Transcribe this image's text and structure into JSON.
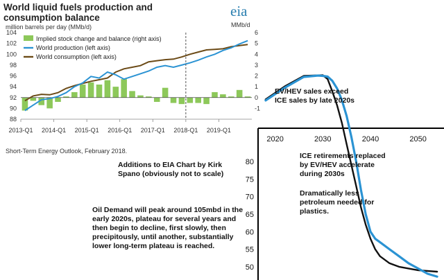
{
  "chart_data": [
    {
      "type": "bar+line",
      "title": "World liquid fuels production and consumption balance",
      "subtitle": "million barrels per day (MMb/d)",
      "right_unit": "MMb/d",
      "brand": "eia",
      "source": "Short-Term Energy Outlook, February 2018.",
      "forecast_start": "2018-Q1",
      "x_tick_labels": [
        "2013-Q1",
        "2014-Q1",
        "2015-Q1",
        "2016-Q1",
        "2017-Q1",
        "2018-Q1",
        "2019-Q1"
      ],
      "y_left": {
        "range": [
          88,
          104
        ],
        "ticks": [
          88,
          90,
          92,
          94,
          96,
          98,
          100,
          102,
          104
        ]
      },
      "y_right": {
        "range": [
          -2,
          6
        ],
        "ticks": [
          -1,
          0,
          1,
          2,
          3,
          4,
          5,
          6
        ]
      },
      "legend": [
        {
          "label": "Implied stock change and balance (right axis)",
          "color": "#8dc85a"
        },
        {
          "label": "World production (left axis)",
          "color": "#2b93d3"
        },
        {
          "label": "World consumption (left axis)",
          "color": "#6b4a16"
        }
      ],
      "quarters": [
        "2013-Q1",
        "2013-Q2",
        "2013-Q3",
        "2013-Q4",
        "2014-Q1",
        "2014-Q2",
        "2014-Q3",
        "2014-Q4",
        "2015-Q1",
        "2015-Q2",
        "2015-Q3",
        "2015-Q4",
        "2016-Q1",
        "2016-Q2",
        "2016-Q3",
        "2016-Q4",
        "2017-Q1",
        "2017-Q2",
        "2017-Q3",
        "2017-Q4",
        "2018-Q1",
        "2018-Q2",
        "2018-Q3",
        "2018-Q4",
        "2019-Q1",
        "2019-Q2",
        "2019-Q3",
        "2019-Q4"
      ],
      "stock_change": [
        -1.2,
        -0.3,
        -0.7,
        -1.0,
        -0.4,
        0.1,
        0.5,
        1.2,
        1.4,
        1.2,
        1.6,
        1.0,
        1.7,
        0.6,
        0.2,
        0.1,
        -0.4,
        0.9,
        -0.5,
        -0.6,
        -0.5,
        -0.5,
        -0.6,
        0.5,
        0.3,
        0.1,
        0.7,
        0.1
      ],
      "world_production": [
        89.6,
        90.6,
        91.6,
        91.8,
        92.2,
        92.9,
        94.0,
        94.7,
        95.9,
        95.6,
        96.7,
        96.2,
        95.4,
        95.9,
        96.4,
        96.9,
        97.6,
        97.9,
        97.6,
        98.0,
        98.4,
        98.9,
        99.5,
        100.0,
        100.7,
        101.2,
        101.9,
        102.5
      ],
      "world_consumption": [
        91.4,
        92.3,
        92.6,
        92.5,
        92.9,
        93.7,
        94.2,
        94.6,
        95.0,
        95.3,
        95.6,
        96.7,
        97.3,
        97.6,
        97.9,
        98.6,
        98.8,
        99.0,
        99.1,
        99.5,
        100.0,
        100.4,
        100.8,
        100.9,
        101.0,
        101.4,
        101.6,
        101.8
      ]
    },
    {
      "type": "line",
      "title": "",
      "x_ticks": [
        2020,
        2030,
        2040,
        2050
      ],
      "x_range": [
        2017,
        2055
      ],
      "y_ticks": [
        50,
        55,
        60,
        65,
        70,
        75,
        80
      ],
      "series": [
        {
          "color": "#111111",
          "points": [
            [
              2018,
              97.7
            ],
            [
              2022,
              101.4
            ],
            [
              2026,
              104.4
            ],
            [
              2030,
              104.6
            ],
            [
              2031,
              103.5
            ],
            [
              2032,
              100
            ],
            [
              2033,
              96
            ],
            [
              2034,
              91
            ],
            [
              2035,
              85
            ],
            [
              2036,
              79
            ],
            [
              2037,
              73
            ],
            [
              2038,
              67
            ],
            [
              2039,
              62
            ],
            [
              2040,
              58
            ],
            [
              2041,
              55
            ],
            [
              2042,
              53
            ],
            [
              2044,
              51
            ],
            [
              2046,
              50
            ],
            [
              2050,
              49
            ],
            [
              2054,
              48.6
            ]
          ]
        },
        {
          "color": "#2b93d3",
          "points": [
            [
              2018,
              97.4
            ],
            [
              2022,
              101.0
            ],
            [
              2026,
              104.1
            ],
            [
              2029,
              104.5
            ],
            [
              2030,
              104.4
            ],
            [
              2031,
              104.2
            ],
            [
              2032,
              103.0
            ],
            [
              2033,
              100.8
            ],
            [
              2034,
              97.5
            ],
            [
              2035,
              93
            ],
            [
              2036,
              87
            ],
            [
              2037,
              80
            ],
            [
              2038,
              72
            ],
            [
              2039,
              65
            ],
            [
              2040,
              60
            ],
            [
              2041,
              58
            ],
            [
              2042,
              57
            ],
            [
              2044,
              55
            ],
            [
              2046,
              53
            ],
            [
              2048,
              51
            ],
            [
              2050,
              49.5
            ],
            [
              2052,
              48
            ],
            [
              2054,
              47.2
            ]
          ]
        }
      ]
    }
  ],
  "annotations": {
    "kirk_credit": "Additions to EIA Chart by Kirk Spano (obviously not to scale)",
    "ev_sales": "EV/HEV sales exceed ICE sales by late 2020s",
    "ice_retirements": "ICE retirements replaced by EV/HEV accelerate during 2030s",
    "plastics": "Dramatically less petroleum needed for plastics.",
    "oil_demand": "Oil Demand will peak around 105mbd in the early 2020s, plateau for several years and then begin to decline, first slowly, then precipitously, until another, substantially lower long-term plateau is reached."
  }
}
